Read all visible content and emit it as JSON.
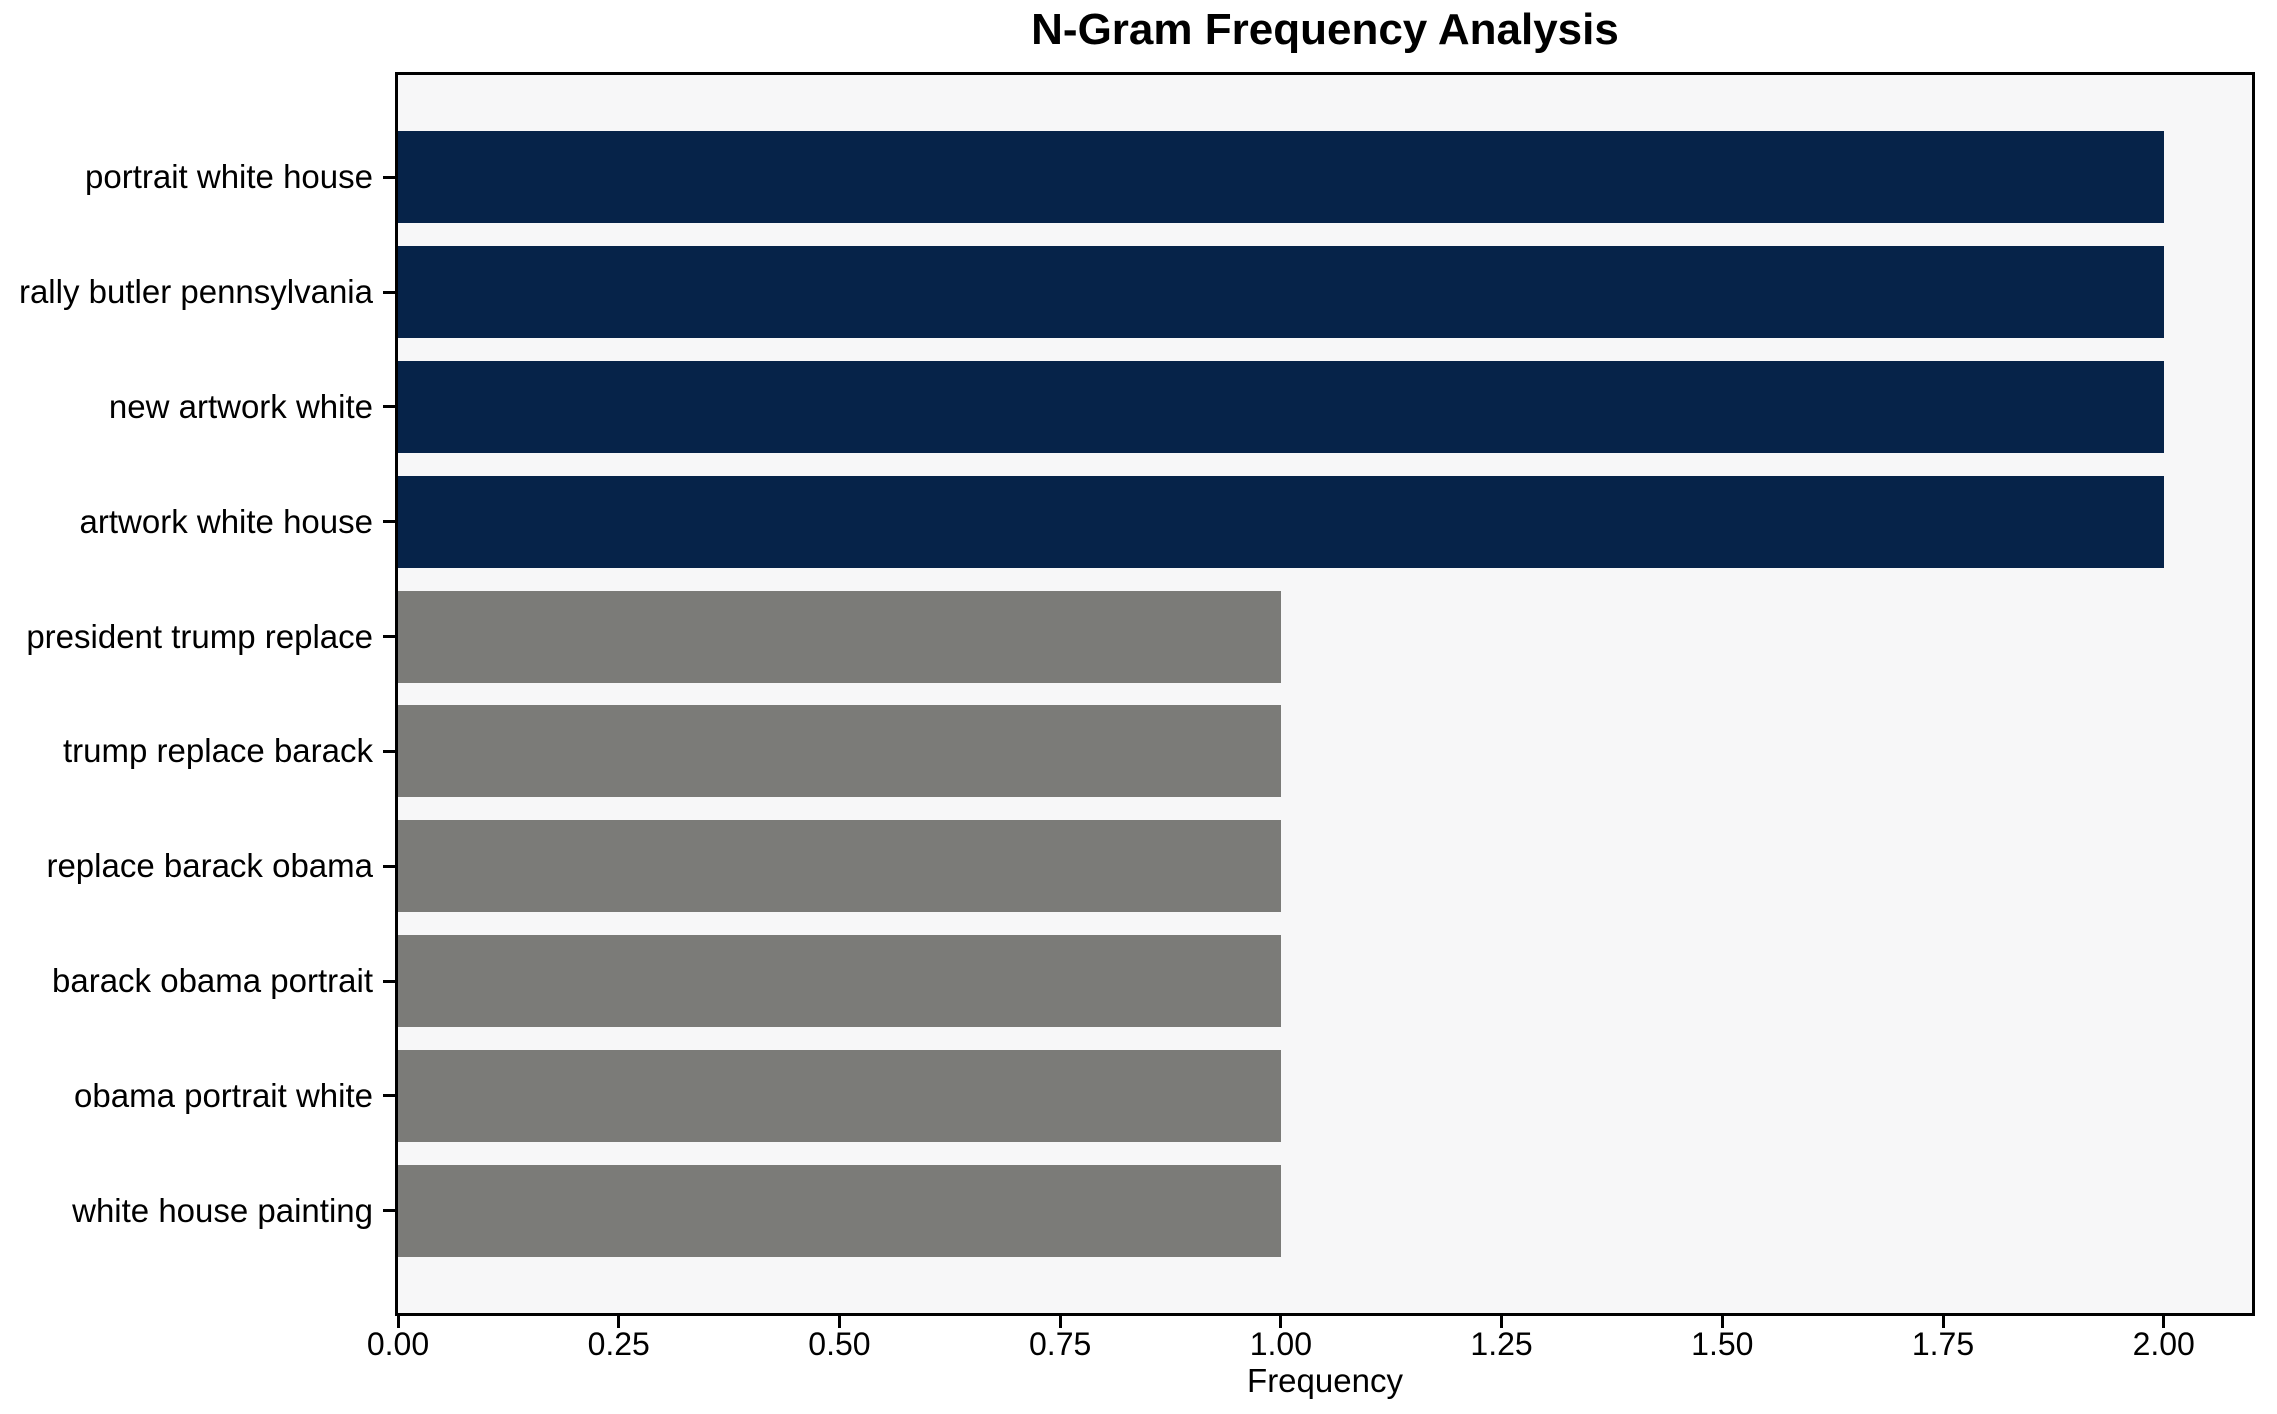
{
  "chart_data": {
    "type": "bar",
    "orientation": "horizontal",
    "title": "N-Gram Frequency Analysis",
    "xlabel": "Frequency",
    "ylabel": "",
    "categories": [
      "portrait white house",
      "rally butler pennsylvania",
      "new artwork white",
      "artwork white house",
      "president trump replace",
      "trump replace barack",
      "replace barack obama",
      "barack obama portrait",
      "obama portrait white",
      "white house painting"
    ],
    "values": [
      2,
      2,
      2,
      2,
      1,
      1,
      1,
      1,
      1,
      1
    ],
    "bar_colors": [
      "#062349",
      "#062349",
      "#062349",
      "#062349",
      "#7b7b78",
      "#7b7b78",
      "#7b7b78",
      "#7b7b78",
      "#7b7b78",
      "#7b7b78"
    ],
    "xlim": [
      0,
      2.1
    ],
    "x_ticks": [
      0,
      0.25,
      0.5,
      0.75,
      1.0,
      1.25,
      1.5,
      1.75,
      2.0
    ],
    "x_tick_labels": [
      "0.00",
      "0.25",
      "0.50",
      "0.75",
      "1.00",
      "1.25",
      "1.50",
      "1.75",
      "2.00"
    ],
    "grid": false,
    "legend": null,
    "colors": {
      "navy": "#062349",
      "gray": "#7b7b78",
      "plot_background": "#f7f7f8",
      "figure_background": "#ffffff",
      "spine": "#000000",
      "text": "#000000"
    }
  }
}
